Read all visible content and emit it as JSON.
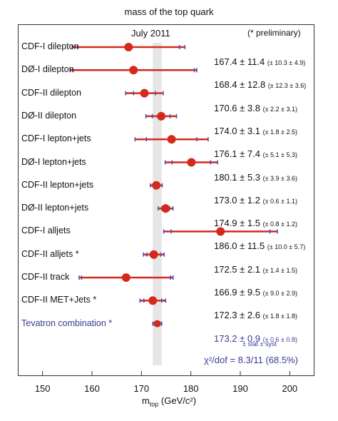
{
  "chart_data": {
    "type": "scatter",
    "title": "mass of the top quark",
    "subtitle": "July 2011",
    "annotation": "(* preliminary)",
    "xlabel_main": "m",
    "xlabel_sub": "top",
    "xlabel_units": "(GeV/c²)",
    "xlim": [
      145,
      205
    ],
    "xticks": [
      "150",
      "160",
      "170",
      "180",
      "190",
      "200"
    ],
    "band_center": 173.2,
    "band_halfwidth": 0.9,
    "marker_color": "#d42a1e",
    "bar_color": "#d42a1e",
    "tick_color": "#3f4fbf",
    "band_color": "#e6e6e6",
    "measurements": [
      {
        "label": "CDF-I dilepton",
        "value": 167.4,
        "total": 11.4,
        "stat": 10.3,
        "syst": 4.9,
        "text_main": "167.4 ± 11.4",
        "text_sub": "(± 10.3 ± 4.9)"
      },
      {
        "label": "DØ-I dilepton",
        "value": 168.4,
        "total": 12.8,
        "stat": 12.3,
        "syst": 3.6,
        "text_main": "168.4 ± 12.8",
        "text_sub": "(± 12.3 ± 3.6)"
      },
      {
        "label": "CDF-II dilepton",
        "value": 170.6,
        "total": 3.8,
        "stat": 2.2,
        "syst": 3.1,
        "text_main": "170.6 ± 3.8",
        "text_sub": "(± 2.2 ± 3.1)"
      },
      {
        "label": "DØ-II dilepton",
        "value": 174.0,
        "total": 3.1,
        "stat": 1.8,
        "syst": 2.5,
        "text_main": "174.0 ± 3.1",
        "text_sub": "(± 1.8 ± 2.5)"
      },
      {
        "label": "CDF-I lepton+jets",
        "value": 176.1,
        "total": 7.4,
        "stat": 5.1,
        "syst": 5.3,
        "text_main": "176.1 ± 7.4",
        "text_sub": "(± 5.1 ± 5.3)"
      },
      {
        "label": "DØ-I lepton+jets",
        "value": 180.1,
        "total": 5.3,
        "stat": 3.9,
        "syst": 3.6,
        "text_main": "180.1 ± 5.3",
        "text_sub": "(± 3.9 ± 3.6)"
      },
      {
        "label": "CDF-II lepton+jets",
        "value": 173.0,
        "total": 1.2,
        "stat": 0.6,
        "syst": 1.1,
        "text_main": "173.0 ± 1.2",
        "text_sub": "(± 0.6 ± 1.1)"
      },
      {
        "label": "DØ-II lepton+jets",
        "value": 174.9,
        "total": 1.5,
        "stat": 0.8,
        "syst": 1.2,
        "text_main": "174.9 ± 1.5",
        "text_sub": "(± 0.8 ± 1.2)"
      },
      {
        "label": "CDF-I alljets",
        "value": 186.0,
        "total": 11.5,
        "stat": 10.0,
        "syst": 5.7,
        "text_main": "186.0 ± 11.5",
        "text_sub": "(± 10.0 ± 5.7)"
      },
      {
        "label": "CDF-II alljets *",
        "value": 172.5,
        "total": 2.1,
        "stat": 1.4,
        "syst": 1.5,
        "text_main": "172.5 ± 2.1",
        "text_sub": "(± 1.4 ± 1.5)"
      },
      {
        "label": "CDF-II track",
        "value": 166.9,
        "total": 9.5,
        "stat": 9.0,
        "syst": 2.9,
        "text_main": "166.9 ± 9.5",
        "text_sub": "(± 9.0 ± 2.9)"
      },
      {
        "label": "CDF-II MET+Jets *",
        "value": 172.3,
        "total": 2.6,
        "stat": 1.8,
        "syst": 1.8,
        "text_main": "172.3 ± 2.6",
        "text_sub": "(± 1.8 ± 1.8)"
      },
      {
        "label": "Tevatron combination *",
        "value": 173.2,
        "total": 0.9,
        "stat": 0.6,
        "syst": 0.8,
        "text_main": "173.2 ± 0.9",
        "text_sub": "(± 0.6 ± 0.8)",
        "combination": true
      }
    ],
    "combination_note": "± stat ± syst",
    "chi2_text": "χ²/dof = 8.3/11 (68.5%)"
  }
}
